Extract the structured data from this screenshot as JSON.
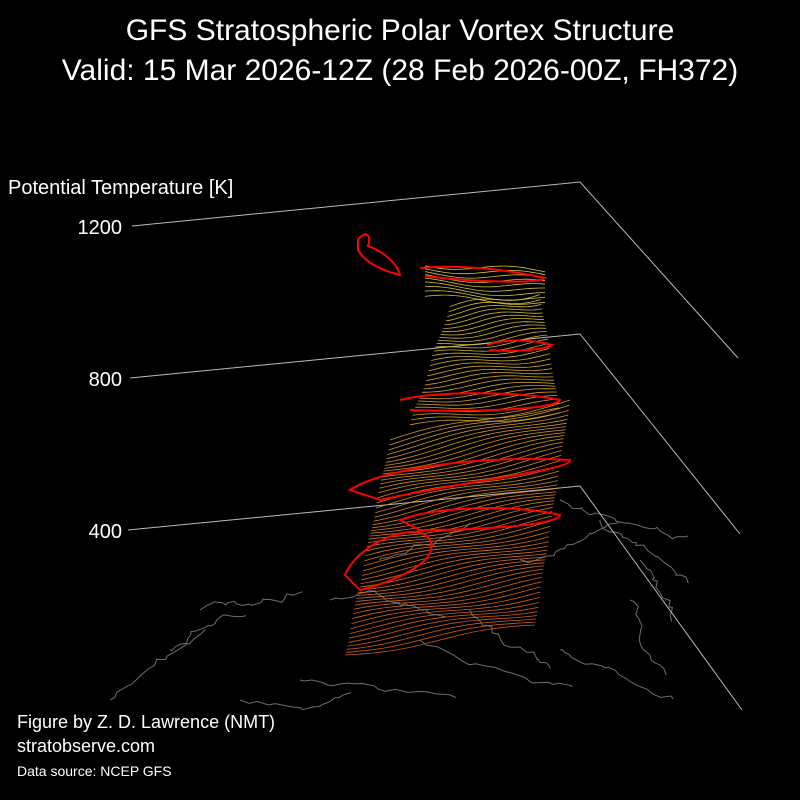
{
  "title": {
    "line1": "GFS Stratospheric Polar Vortex Structure",
    "line2": "Valid: 15 Mar 2026-12Z  (28 Feb 2026-00Z, FH372)"
  },
  "credits": {
    "author": "Figure by Z. D. Lawrence (NMT)",
    "site": "stratobserve.com",
    "source": "Data source: NCEP GFS"
  },
  "colors": {
    "background": "#000000",
    "text": "#ffffff",
    "axis": "#bbbbbb",
    "coastline": "#6e6e6e",
    "edge_highlight": "#ff0000",
    "contour_low": "#e0621a",
    "contour_high": "#e8e03a"
  },
  "chart_data": {
    "type": "3d-isosurface",
    "zlabel": "Potential Temperature [K]",
    "z_ticks": [
      400,
      800,
      1200
    ],
    "z_tick_labels": [
      "400",
      "800",
      "1200"
    ],
    "grid": true
  }
}
